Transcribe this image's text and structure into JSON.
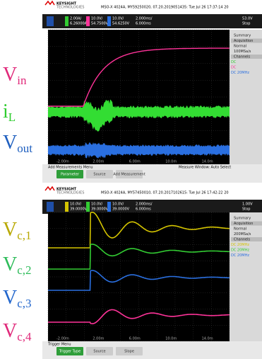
{
  "scope1": {
    "brand": "KEYSIGHT",
    "subbrand": "TECHNOLOGIES",
    "title": "MSO-X 4024A, MY59250020, 07.20.2019051435: Tue Jul 26 17:37:14 20",
    "channels": [
      {
        "scale": "2.00A/",
        "offset": "6.26000A",
        "color": "#33cc33"
      },
      {
        "scale": "10.0V/",
        "offset": "54.7500V",
        "color": "#ff3399"
      },
      {
        "scale": "10.0V/",
        "offset": "54.6250V",
        "color": "#2a6fe0"
      }
    ],
    "timebase": "2.000ms/",
    "time_offset": "6.000ms",
    "trigger": "53.0V",
    "mode": "Stop",
    "panel": [
      "Summary",
      "Acquisition",
      "Normal",
      "100MSa/s",
      "Channels",
      "DC",
      "DC",
      "DC 20MHz"
    ],
    "x_labels": [
      "-2.00m",
      "2.00m",
      "6.00m",
      "10.0m",
      "14.0m"
    ],
    "menu": "Add Measurements Menu",
    "measure_window": "Measure Window: Auto Select",
    "buttons": [
      "Parameter",
      "Source",
      "Add Measurement"
    ],
    "signals": [
      {
        "main": "V",
        "sub": "in",
        "color": "#e0297a"
      },
      {
        "main": "i",
        "sub": "L",
        "color": "#2ecc2e"
      },
      {
        "main": "V",
        "sub": "out",
        "color": "#1f5fbf"
      }
    ]
  },
  "scope2": {
    "brand": "KEYSIGHT",
    "subbrand": "TECHNOLOGIES",
    "title": "MSO-X 4024A, MY57450010, 07.20.2017102615: Tue Jul 26 17:42:22 20",
    "channels": [
      {
        "scale": "10.0V/",
        "offset": "39.0000V",
        "color": "#d4c400"
      },
      {
        "scale": "10.0V/",
        "offset": "39.0000V",
        "color": "#33cc33"
      },
      {
        "scale": "10.0V/",
        "offset": "39.0000V",
        "color": "#2a6fe0"
      }
    ],
    "timebase": "2.000ms/",
    "time_offset": "6.000ms",
    "trigger": "1.00V",
    "mode": "Stop",
    "panel": [
      "Summary",
      "Acquisition",
      "Normal",
      "200MSa/s",
      "Channels",
      "DC 20MHz",
      "DC 20MHz",
      "DC 20MHz"
    ],
    "x_labels": [
      "-2.00m",
      "2.00m",
      "6.00m",
      "10.0m",
      "14.0m"
    ],
    "menu": "Trigger Menu",
    "buttons": [
      "Trigger Type",
      "Source",
      "Slope"
    ],
    "signals": [
      {
        "main": "V",
        "sub": "c,1",
        "color": "#b8a800"
      },
      {
        "main": "V",
        "sub": "c,2",
        "color": "#2ebc5a"
      },
      {
        "main": "V",
        "sub": "c,3",
        "color": "#2266cc"
      },
      {
        "main": "V",
        "sub": "c,4",
        "color": "#e0297a"
      }
    ]
  }
}
